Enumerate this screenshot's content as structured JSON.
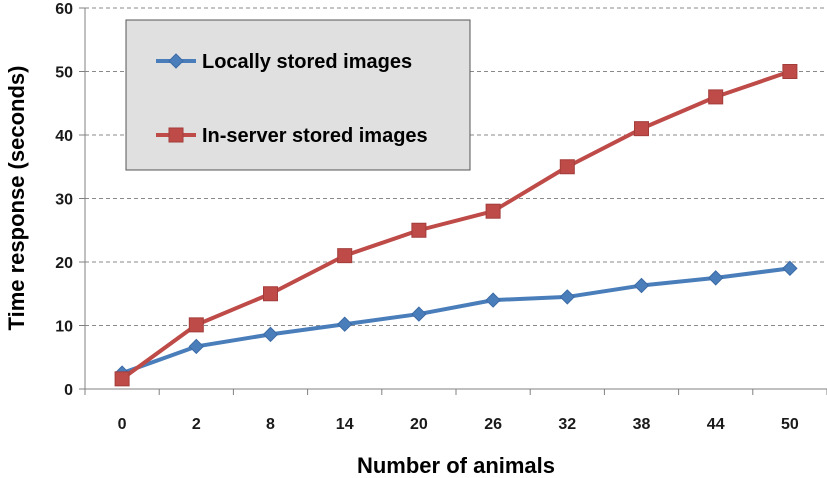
{
  "chart_data": {
    "type": "line",
    "categories": [
      "0",
      "2",
      "8",
      "14",
      "20",
      "26",
      "32",
      "38",
      "44",
      "50"
    ],
    "series": [
      {
        "name": "Locally stored images",
        "color": "#4a7ebb",
        "marker": "diamond",
        "values": [
          2.5,
          6.7,
          8.6,
          10.2,
          11.8,
          14.0,
          14.5,
          16.3,
          17.5,
          19.0
        ]
      },
      {
        "name": "In-server stored images",
        "color": "#be4b48",
        "marker": "square",
        "values": [
          1.6,
          10.1,
          15.0,
          21.0,
          25.0,
          28.0,
          35.0,
          41.0,
          46.0,
          50.0
        ]
      }
    ],
    "title": "",
    "xlabel": "Number of animals",
    "ylabel": "Time response (seconds)",
    "ylim": [
      0,
      60
    ],
    "yticks": [
      "0",
      "10",
      "20",
      "30",
      "40",
      "50",
      "60"
    ],
    "grid": "horizontal-dashed",
    "legend": {
      "placement": "top-left-inside",
      "background": "#e0e0e0"
    }
  }
}
